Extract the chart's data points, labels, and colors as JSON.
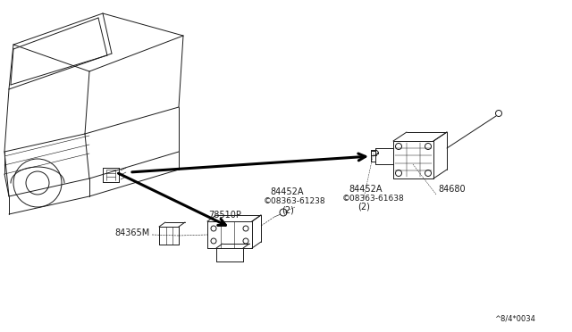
{
  "bg_color": "#ffffff",
  "line_color": "#1a1a1a",
  "label_84452A_1": "84452A",
  "label_screw_1": "©08363-61238",
  "label_qty_1": "(2)",
  "label_78510P": "78510P",
  "label_84365M": "84365M",
  "label_84452A_2": "84452A",
  "label_screw_2": "©08363-61638",
  "label_qty_2": "(2)",
  "label_84680": "84680",
  "label_diagram_code": "^8/4*0034",
  "figsize": [
    6.4,
    3.72
  ],
  "dpi": 100
}
